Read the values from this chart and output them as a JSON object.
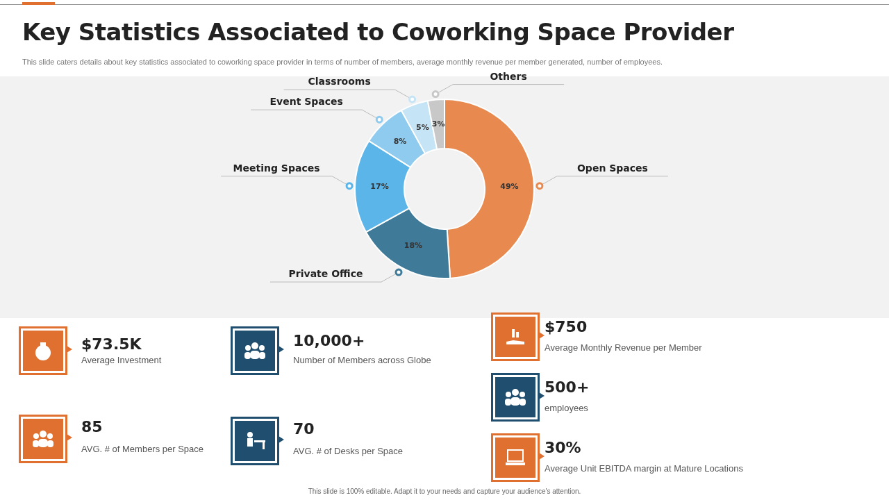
{
  "chart_data": [
    {
      "type": "donut",
      "title": "Key Statistics Associated to Coworking Space Provider",
      "subtitle": "This slide caters details about key statistics associated to coworking space provider in terms of number of members, average monthly revenue per member generated, number of employees.",
      "categories": [
        "Open Spaces",
        "Private Office",
        "Meeting Spaces",
        "Event Spaces",
        "Classrooms",
        "Others"
      ],
      "values": [
        49,
        18,
        17,
        8,
        5,
        3
      ],
      "value_labels": [
        "49%",
        "18%",
        "17%",
        "8%",
        "5%",
        "3%"
      ],
      "colors": [
        "#e8894f",
        "#3f7a99",
        "#5bb5e8",
        "#8fcbee",
        "#c5e4f5",
        "#c8c8c8"
      ],
      "legend": false,
      "annotations": [
        "This slide is 100% editable. Adapt it to your needs and capture your audience's attention."
      ]
    },
    {
      "type": "other",
      "annotations": [
        "$73.5K",
        "Average  Investment",
        "10,000+",
        "Number of Members across Globe",
        "$750",
        "Average  Monthly Revenue  per Member",
        "500+",
        "employees",
        "30%",
        "Average  Unit EBITDA margin at Mature Locations",
        "85",
        "AVG. # of Members per Space",
        "70",
        "AVG. # of Desks per Space"
      ]
    }
  ]
}
